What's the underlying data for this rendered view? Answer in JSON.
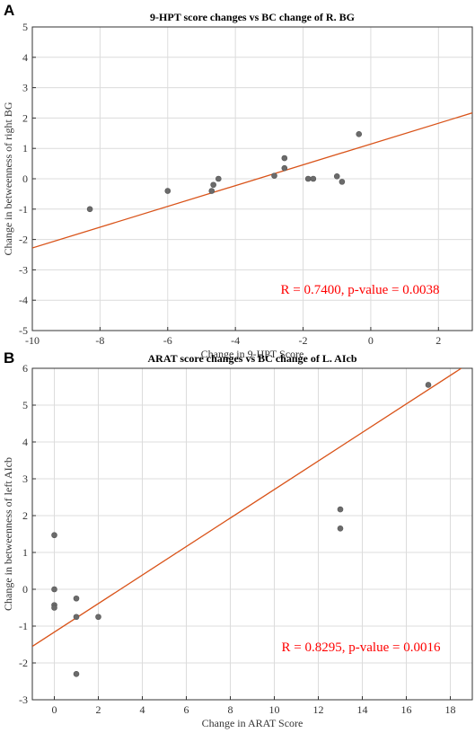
{
  "chart_data": [
    {
      "panel": "A",
      "type": "scatter",
      "title": "9-HPT score changes vs BC change of R. BG",
      "xlabel": "Change in 9-HPT Score",
      "ylabel": "Change in betweenness of right BG",
      "xlim": [
        -10,
        3
      ],
      "ylim": [
        -5,
        5
      ],
      "xticks": [
        -10,
        -8,
        -6,
        -4,
        -2,
        0,
        2
      ],
      "yticks": [
        -5,
        -4,
        -3,
        -2,
        -1,
        0,
        1,
        2,
        3,
        4,
        5
      ],
      "grid": true,
      "points": [
        {
          "x": -8.3,
          "y": -1.0
        },
        {
          "x": -6.0,
          "y": -0.4
        },
        {
          "x": -4.7,
          "y": -0.4
        },
        {
          "x": -4.65,
          "y": -0.2
        },
        {
          "x": -4.5,
          "y": 0.0
        },
        {
          "x": -2.85,
          "y": 0.1
        },
        {
          "x": -2.55,
          "y": 0.35
        },
        {
          "x": -2.55,
          "y": 0.68
        },
        {
          "x": -1.85,
          "y": 0.0
        },
        {
          "x": -1.7,
          "y": 0.0
        },
        {
          "x": -1.0,
          "y": 0.08
        },
        {
          "x": -0.85,
          "y": -0.1
        },
        {
          "x": -0.35,
          "y": 1.47
        }
      ],
      "fit_line": {
        "x": [
          -10,
          3
        ],
        "y": [
          -2.28,
          2.17
        ]
      },
      "annotation": "R = 0.7400, p-value = 0.0038",
      "annotation_color": "#ff0000",
      "fit_color": "#d95319"
    },
    {
      "panel": "B",
      "type": "scatter",
      "title": "ARAT score changes vs BC change of L. AIcb",
      "xlabel": "Change in ARAT Score",
      "ylabel": "Change in betweenness of left AIcb",
      "xlim": [
        -1,
        19
      ],
      "ylim": [
        -3,
        6
      ],
      "xticks": [
        0,
        2,
        4,
        6,
        8,
        10,
        12,
        14,
        16,
        18
      ],
      "yticks": [
        -3,
        -2,
        -1,
        0,
        1,
        2,
        3,
        4,
        5,
        6
      ],
      "grid": true,
      "points": [
        {
          "x": 0,
          "y": 1.47
        },
        {
          "x": 0,
          "y": 0.0
        },
        {
          "x": 0,
          "y": -0.43
        },
        {
          "x": 0,
          "y": -0.5
        },
        {
          "x": 1,
          "y": -0.25
        },
        {
          "x": 1,
          "y": -0.75
        },
        {
          "x": 1,
          "y": -2.3
        },
        {
          "x": 2,
          "y": -0.75
        },
        {
          "x": 13,
          "y": 2.17
        },
        {
          "x": 13,
          "y": 1.65
        },
        {
          "x": 17,
          "y": 5.55
        }
      ],
      "fit_line": {
        "x": [
          -1,
          18.5
        ],
        "y": [
          -1.55,
          6.0
        ]
      },
      "annotation": "R = 0.8295, p-value = 0.0016",
      "annotation_color": "#ff0000",
      "fit_color": "#d95319"
    }
  ]
}
